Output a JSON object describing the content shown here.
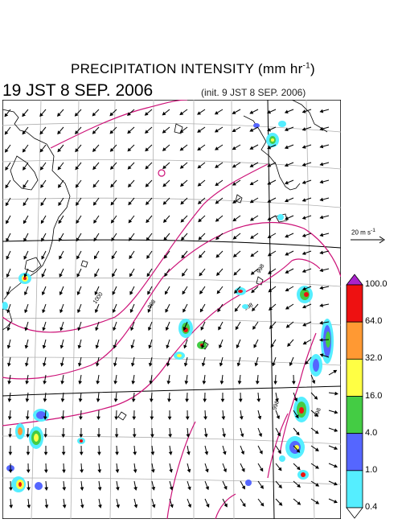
{
  "header": {
    "title_main": "PRECIPITATION INTENSITY (mm hr",
    "title_exp": "-1",
    "title_close": ")",
    "valid_time": "19 JST 8 SEP. 2006",
    "init_time": "(init. 9 JST 8 SEP. 2006)"
  },
  "isobar_labels": [
    "1000",
    "998",
    "998",
    "998",
    "998",
    "998"
  ],
  "colors": {
    "isobar": "#cc1177",
    "grid": "#b0b0b0",
    "coast": "#000000",
    "arrow": "#000000"
  },
  "reference_vector": {
    "label": "20 m s",
    "exp": "-1"
  },
  "colorbar": {
    "levels": [
      "100.0",
      "64.0",
      "32.0",
      "16.0",
      "4.0",
      "1.0",
      "0.4"
    ],
    "colors": [
      "#aa22cc",
      "#ee1111",
      "#ff9933",
      "#ffff44",
      "#44cc44",
      "#5566ff",
      "#55eeff",
      "#ffffff"
    ]
  }
}
